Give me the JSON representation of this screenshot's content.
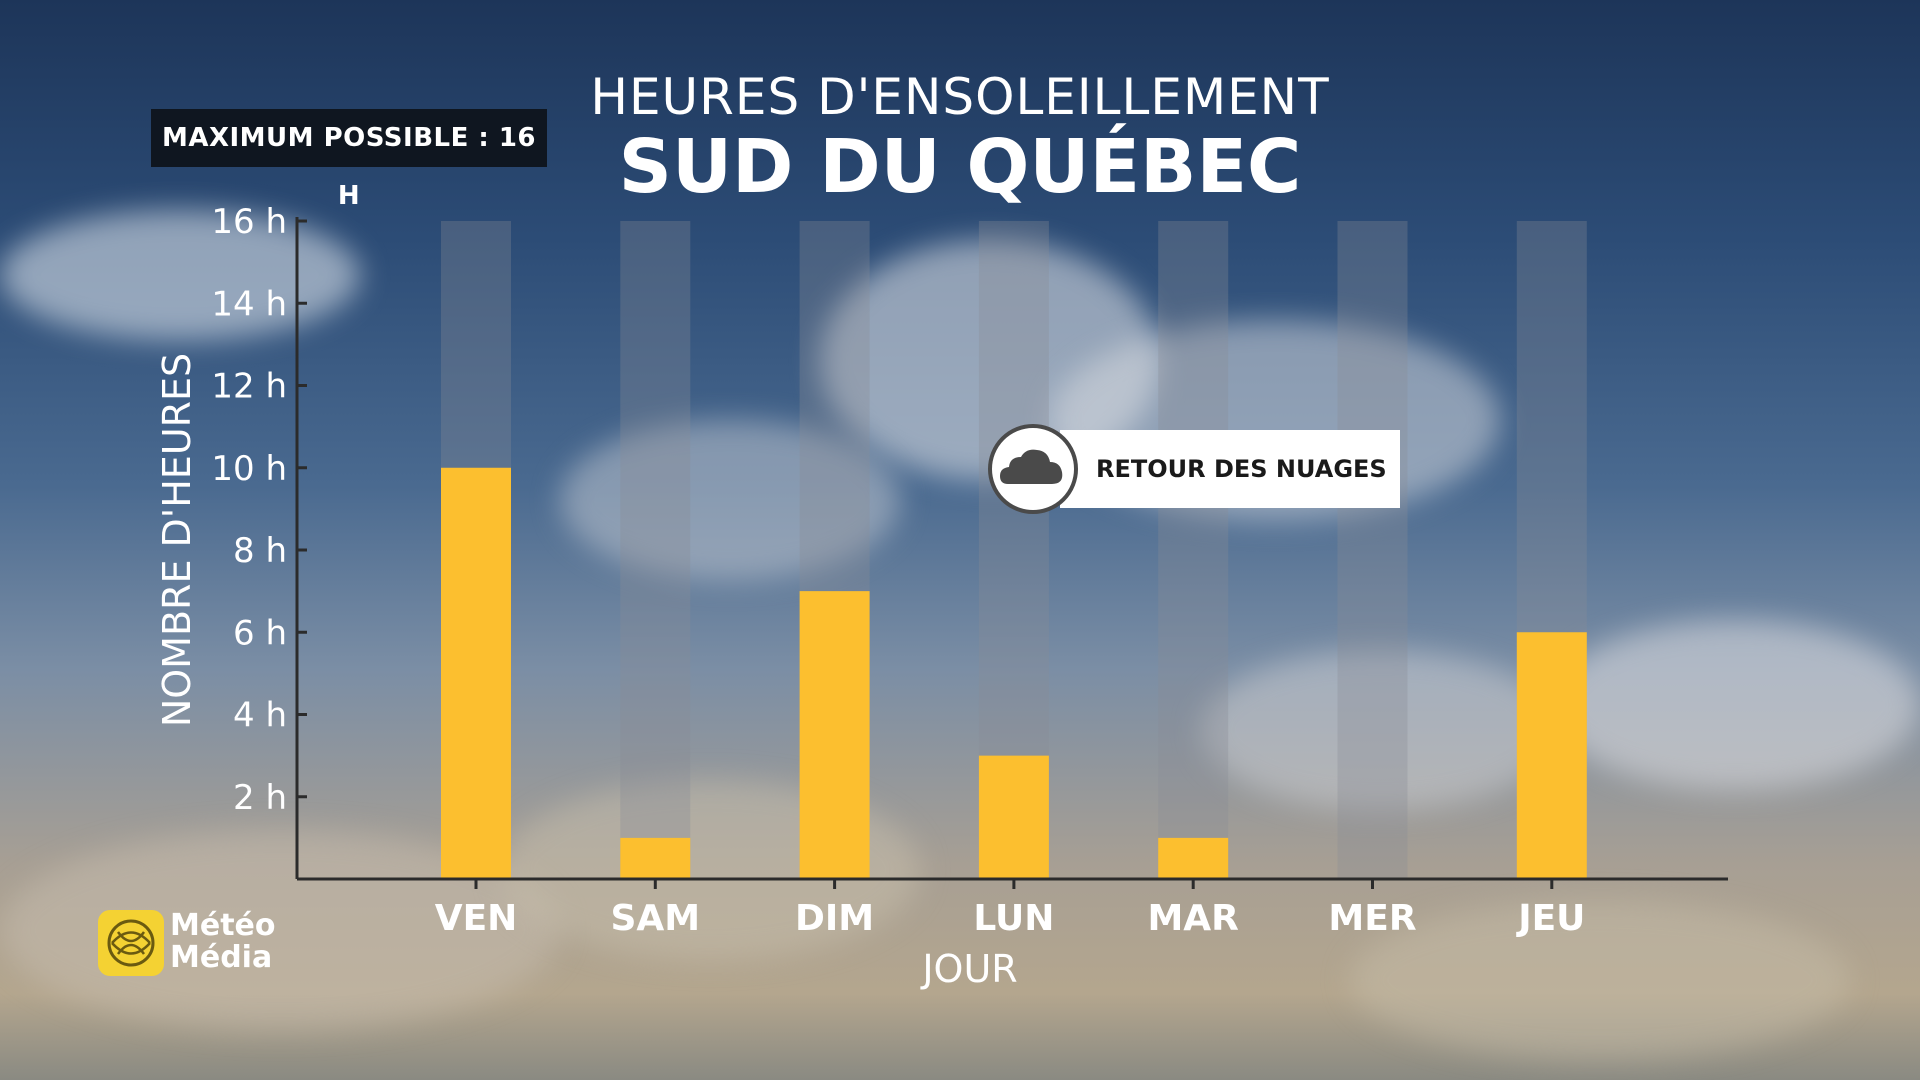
{
  "chart_data": {
    "type": "bar",
    "title": "HEURES D'ENSOLEILLEMENT",
    "subtitle": "SUD DU QUÉBEC",
    "xlabel": "JOUR",
    "ylabel": "NOMBRE D'HEURES",
    "categories": [
      "VEN",
      "SAM",
      "DIM",
      "LUN",
      "MAR",
      "MER",
      "JEU"
    ],
    "values": [
      10,
      1,
      7,
      3,
      1,
      0,
      6
    ],
    "max_value": 16,
    "ylim": [
      0,
      16
    ],
    "yticks": [
      2,
      4,
      6,
      8,
      10,
      12,
      14,
      16
    ],
    "ytick_labels": [
      "2 h",
      "4 h",
      "6 h",
      "8 h",
      "10 h",
      "12 h",
      "14 h",
      "16 h"
    ],
    "bar_color": "#fcbf2f",
    "track_color": "#8a8d94",
    "grid": false
  },
  "badge": {
    "max_label": "MAXIMUM POSSIBLE : 16 H"
  },
  "annotation": {
    "text": "RETOUR DES NUAGES",
    "icon": "cloud-icon",
    "near_category": "MER"
  },
  "logo": {
    "line1": "Météo",
    "line2": "Média",
    "color": "#f4d233"
  }
}
